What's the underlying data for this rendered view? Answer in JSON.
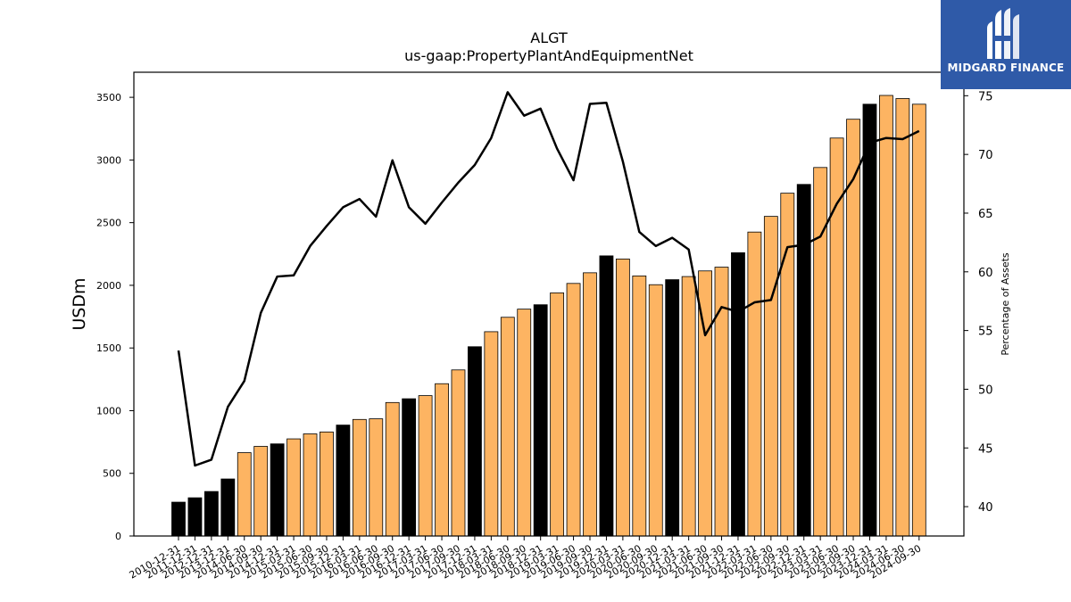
{
  "brand": {
    "name": "MIDGARD FINANCE",
    "bg": "#2f5aa8"
  },
  "chart_data": {
    "type": "bar",
    "title": "ALGT",
    "subtitle": "us-gaap:PropertyPlantAndEquipmentNet",
    "ylabel": "USDm",
    "y2label": "Percentage of Assets",
    "ylim": [
      0,
      3700
    ],
    "y2lim": [
      37.5,
      77.0
    ],
    "yticks": [
      0,
      500,
      1000,
      1500,
      2000,
      2500,
      3000,
      3500
    ],
    "y2ticks": [
      40,
      45,
      50,
      55,
      60,
      65,
      70,
      75
    ],
    "colors": {
      "annual": "#000000",
      "quarterly": "#fdb462",
      "line": "#000000"
    },
    "categories": [
      "2010-12-31",
      "2011-12-31",
      "2012-12-31",
      "2013-12-31",
      "2014-06-30",
      "2014-09-30",
      "2014-12-31",
      "2015-03-31",
      "2015-06-30",
      "2015-09-30",
      "2015-12-31",
      "2016-03-31",
      "2016-06-30",
      "2016-09-30",
      "2016-12-31",
      "2017-03-31",
      "2017-06-30",
      "2017-09-30",
      "2017-12-31",
      "2018-03-31",
      "2018-06-30",
      "2018-09-30",
      "2018-12-31",
      "2019-03-31",
      "2019-06-30",
      "2019-09-30",
      "2019-12-31",
      "2020-03-31",
      "2020-06-30",
      "2020-09-30",
      "2020-12-31",
      "2021-03-31",
      "2021-06-30",
      "2021-09-30",
      "2021-12-31",
      "2022-03-31",
      "2022-06-30",
      "2022-09-30",
      "2022-12-31",
      "2023-03-31",
      "2023-06-30",
      "2023-09-30",
      "2023-12-31",
      "2024-03-31",
      "2024-06-30",
      "2024-09-30"
    ],
    "values": [
      270,
      305,
      355,
      455,
      665,
      715,
      735,
      775,
      815,
      830,
      885,
      930,
      935,
      1065,
      1095,
      1120,
      1215,
      1325,
      1510,
      1630,
      1745,
      1810,
      1845,
      1940,
      2015,
      2100,
      2235,
      2210,
      2075,
      2005,
      2045,
      2070,
      2115,
      2145,
      2260,
      2425,
      2550,
      2735,
      2805,
      2940,
      3175,
      3325,
      3445,
      3515,
      3490,
      3445
    ],
    "bar_kind": [
      "annual",
      "annual",
      "annual",
      "annual",
      "quarterly",
      "quarterly",
      "annual",
      "quarterly",
      "quarterly",
      "quarterly",
      "annual",
      "quarterly",
      "quarterly",
      "quarterly",
      "annual",
      "quarterly",
      "quarterly",
      "quarterly",
      "annual",
      "quarterly",
      "quarterly",
      "quarterly",
      "annual",
      "quarterly",
      "quarterly",
      "quarterly",
      "annual",
      "quarterly",
      "quarterly",
      "quarterly",
      "annual",
      "quarterly",
      "quarterly",
      "quarterly",
      "annual",
      "quarterly",
      "quarterly",
      "quarterly",
      "annual",
      "quarterly",
      "quarterly",
      "quarterly",
      "annual",
      "quarterly",
      "quarterly",
      "quarterly"
    ],
    "pct_assets": [
      53.3,
      43.5,
      44.0,
      48.5,
      50.7,
      56.5,
      59.6,
      59.7,
      62.2,
      63.9,
      65.5,
      66.2,
      64.7,
      69.5,
      65.5,
      64.1,
      65.9,
      67.6,
      69.1,
      71.4,
      75.3,
      73.3,
      73.9,
      70.5,
      67.8,
      74.3,
      74.4,
      69.4,
      63.4,
      62.2,
      62.9,
      61.9,
      54.6,
      57.0,
      56.6,
      57.4,
      57.6,
      62.1,
      62.3,
      63.0,
      65.8,
      67.9,
      71.0,
      71.4,
      71.3,
      72.0
    ]
  }
}
